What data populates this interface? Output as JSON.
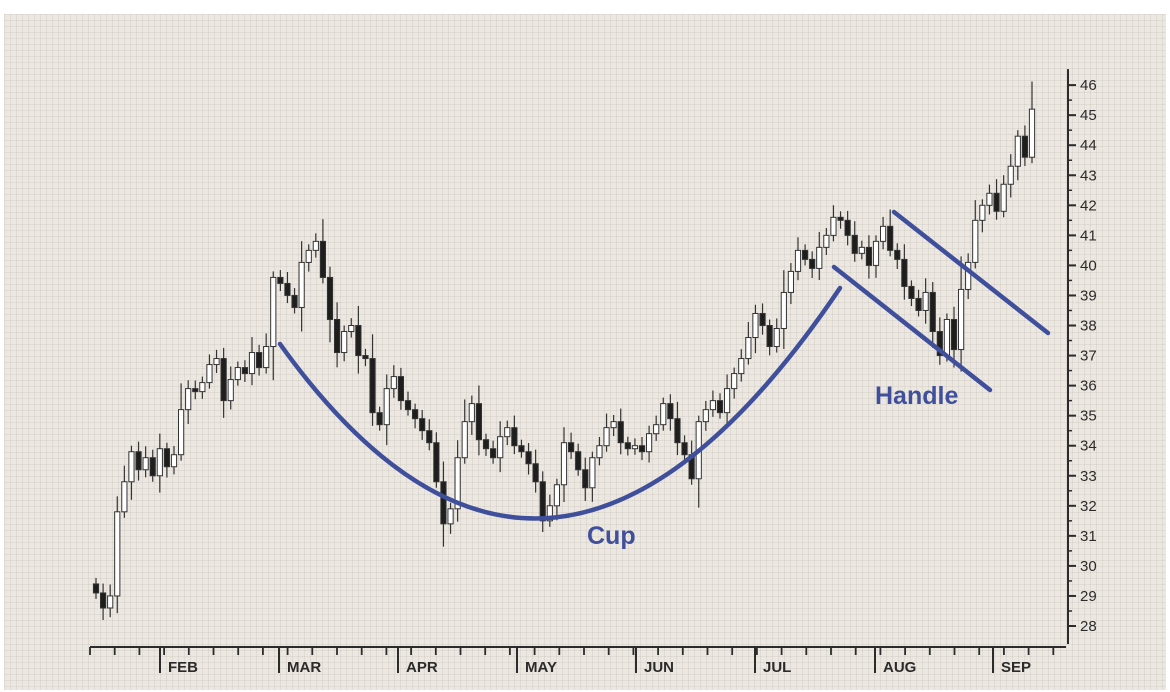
{
  "chart_data": {
    "type": "candlestick",
    "title": "",
    "xlabel": "",
    "ylabel": "",
    "ylim": [
      28,
      46
    ],
    "y_ticks": [
      28,
      29,
      30,
      31,
      32,
      33,
      34,
      35,
      36,
      37,
      38,
      39,
      40,
      41,
      42,
      43,
      44,
      45,
      46
    ],
    "y_axis_side": "right",
    "grid": true,
    "months": [
      "FEB",
      "MAR",
      "APR",
      "MAY",
      "JUN",
      "JUL",
      "AUG",
      "SEP"
    ],
    "colors": {
      "background": "#ece8e1",
      "candle_up": "#ffffff",
      "candle_down": "#1e1e1e",
      "annotation": "#3f4f9b",
      "axis": "#2b2b2b"
    },
    "closes": [
      29.1,
      28.6,
      29.0,
      31.8,
      32.8,
      33.8,
      33.2,
      33.6,
      33.0,
      33.9,
      33.3,
      33.7,
      35.2,
      35.9,
      35.8,
      36.1,
      36.7,
      36.9,
      35.5,
      36.2,
      36.6,
      36.4,
      37.1,
      36.6,
      37.3,
      39.6,
      39.4,
      39.0,
      38.6,
      40.1,
      40.5,
      40.8,
      39.6,
      38.2,
      37.1,
      37.8,
      38.0,
      37.0,
      36.9,
      35.1,
      34.7,
      35.9,
      36.3,
      35.5,
      35.2,
      34.9,
      34.5,
      34.1,
      32.8,
      31.4,
      31.9,
      33.6,
      34.8,
      35.4,
      34.2,
      33.9,
      33.6,
      34.3,
      34.6,
      34.0,
      33.8,
      33.4,
      32.8,
      31.5,
      32.0,
      32.7,
      34.1,
      33.8,
      33.2,
      32.6,
      33.6,
      34.0,
      34.6,
      34.8,
      34.1,
      33.9,
      34.0,
      33.8,
      34.4,
      34.7,
      35.4,
      34.9,
      34.1,
      33.7,
      32.9,
      34.8,
      35.2,
      35.5,
      35.1,
      35.9,
      36.4,
      36.9,
      37.6,
      38.4,
      38.0,
      37.3,
      37.9,
      39.1,
      39.8,
      40.5,
      40.2,
      39.9,
      40.6,
      41.0,
      41.6,
      41.5,
      41.0,
      40.4,
      40.6,
      40.0,
      40.8,
      41.3,
      40.5,
      40.2,
      39.3,
      38.9,
      38.5,
      39.1,
      37.8,
      37.0,
      38.2,
      37.2,
      39.2,
      40.1,
      41.5,
      42.0,
      42.4,
      41.8,
      42.7,
      43.3,
      44.3,
      43.6,
      45.2
    ]
  },
  "annotations": {
    "cup_label": "Cup",
    "handle_label": "Handle"
  }
}
